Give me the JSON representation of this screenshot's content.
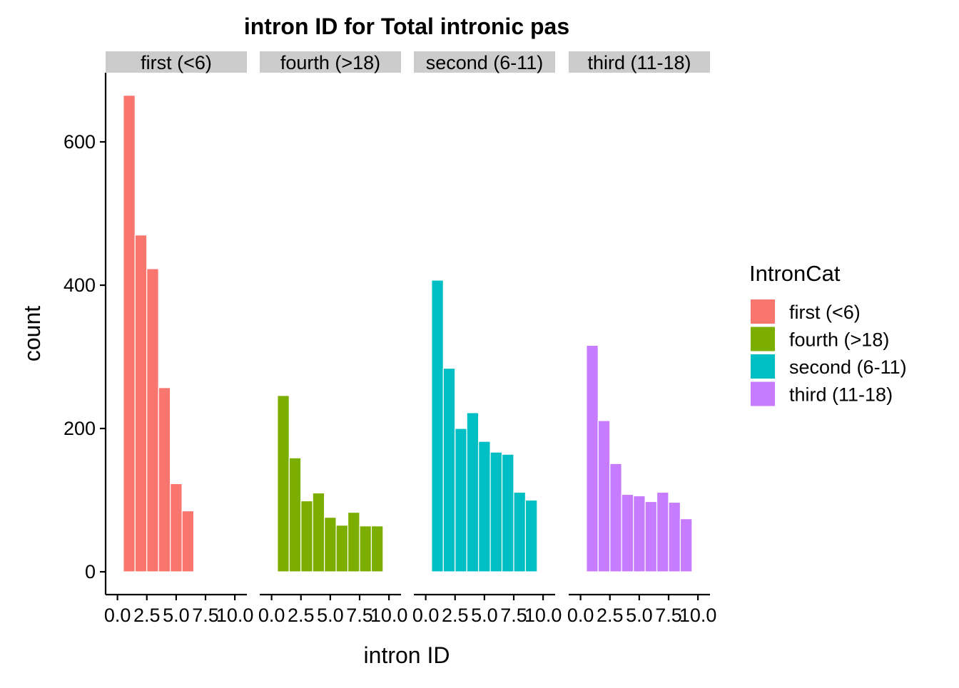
{
  "chart_data": {
    "type": "bar",
    "title": "intron ID for Total intronic pas",
    "xlabel": "intron ID",
    "ylabel": "count",
    "ylim": [
      0,
      690
    ],
    "y_ticks": [
      0,
      200,
      400,
      600
    ],
    "x_ticks": [
      0.0,
      2.5,
      5.0,
      7.5,
      10.0
    ],
    "x_tick_labels": [
      "0.0",
      "2.5",
      "5.0",
      "7.5",
      "10.0"
    ],
    "xlim": [
      -0.5,
      10.5
    ],
    "bin_width": 1,
    "grid": false,
    "legend": {
      "title": "IntronCat",
      "position": "right",
      "entries": [
        "first (<6)",
        "fourth (>18)",
        "second (6-11)",
        "third (11-18)"
      ]
    },
    "facets": [
      {
        "label": "first (<6)",
        "color": "#F8766D",
        "bins": [
          1,
          2,
          3,
          4,
          5,
          6
        ],
        "values": [
          665,
          470,
          423,
          257,
          123,
          85
        ]
      },
      {
        "label": "fourth (>18)",
        "color": "#7CAE00",
        "bins": [
          1,
          2,
          3,
          4,
          5,
          6,
          7,
          8,
          9
        ],
        "values": [
          246,
          159,
          99,
          110,
          76,
          65,
          83,
          64,
          64
        ]
      },
      {
        "label": "second (6-11)",
        "color": "#00BFC4",
        "bins": [
          1,
          2,
          3,
          4,
          5,
          6,
          7,
          8,
          9
        ],
        "values": [
          407,
          284,
          200,
          222,
          182,
          167,
          164,
          111,
          100
        ]
      },
      {
        "label": "third (11-18)",
        "color": "#C77CFF",
        "bins": [
          1,
          2,
          3,
          4,
          5,
          6,
          7,
          8,
          9
        ],
        "values": [
          316,
          211,
          151,
          108,
          106,
          98,
          111,
          97,
          74
        ]
      }
    ]
  }
}
